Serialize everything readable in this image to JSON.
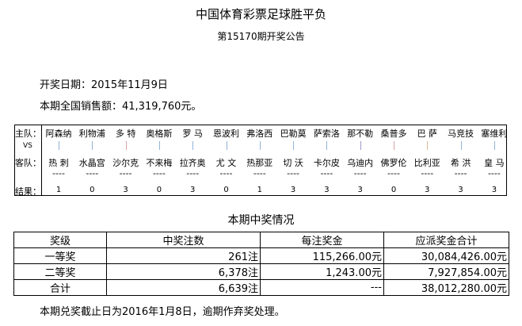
{
  "title": "中国体育彩票足球胜平负",
  "subtitle": "第15170期开奖公告",
  "draw_date": "开奖日期：2015年11月9日",
  "sales": "本期全国销售额：41,319,760元。",
  "match_labels": {
    "home": "主队：",
    "vs": "VS",
    "away": "客队：",
    "result": "结果："
  },
  "dash": "----",
  "matches": [
    {
      "home": "阿森纳",
      "away": "热 刺",
      "result": "1",
      "bar": "#8fb4d8"
    },
    {
      "home": "利物浦",
      "away": "水晶宫",
      "result": "0",
      "bar": "#8fb4d8"
    },
    {
      "home": "多 特",
      "away": "沙尔克",
      "result": "3",
      "bar": "#d8a0a8"
    },
    {
      "home": "奥格斯",
      "away": "不来梅",
      "result": "0",
      "bar": "#8fb4d8"
    },
    {
      "home": "罗 马",
      "away": "拉齐奥",
      "result": "3",
      "bar": "#8fb4d8"
    },
    {
      "home": "恩波利",
      "away": "尤 文",
      "result": "0",
      "bar": "#8fb4d8"
    },
    {
      "home": "弗洛西",
      "away": "热那亚",
      "result": "1",
      "bar": "#8fb4d8"
    },
    {
      "home": "巴勒莫",
      "away": "切 沃",
      "result": "3",
      "bar": "#8fb4d8"
    },
    {
      "home": "萨索洛",
      "away": "卡尔皮",
      "result": "3",
      "bar": "#8fb4d8"
    },
    {
      "home": "那不勒",
      "away": "乌迪内",
      "result": "3",
      "bar": "#a098c8"
    },
    {
      "home": "桑普多",
      "away": "佛罗伦",
      "result": "0",
      "bar": "#d8a0a8"
    },
    {
      "home": "巴 萨",
      "away": "比利亚",
      "result": "3",
      "bar": "#e0b890"
    },
    {
      "home": "马竞技",
      "away": "希 洪",
      "result": "3",
      "bar": "#8fb4d8"
    },
    {
      "home": "塞维利",
      "away": "皇 马",
      "result": "3",
      "bar": "#8fb4d8"
    }
  ],
  "prize_section_title": "本期中奖情况",
  "prize_table": {
    "headers": [
      "奖级",
      "中奖注数",
      "每注奖金",
      "应派奖金合计"
    ],
    "rows": [
      [
        "一等奖",
        "261注",
        "115,266.00元",
        "30,084,426.00元"
      ],
      [
        "二等奖",
        "6,378注",
        "1,243.00元",
        "7,927,854.00元"
      ],
      [
        "合计",
        "6,639注",
        "---",
        "38,012,280.00元"
      ]
    ]
  },
  "note": "本期兑奖截止日为2016年1月8日，逾期作弃奖处理。"
}
